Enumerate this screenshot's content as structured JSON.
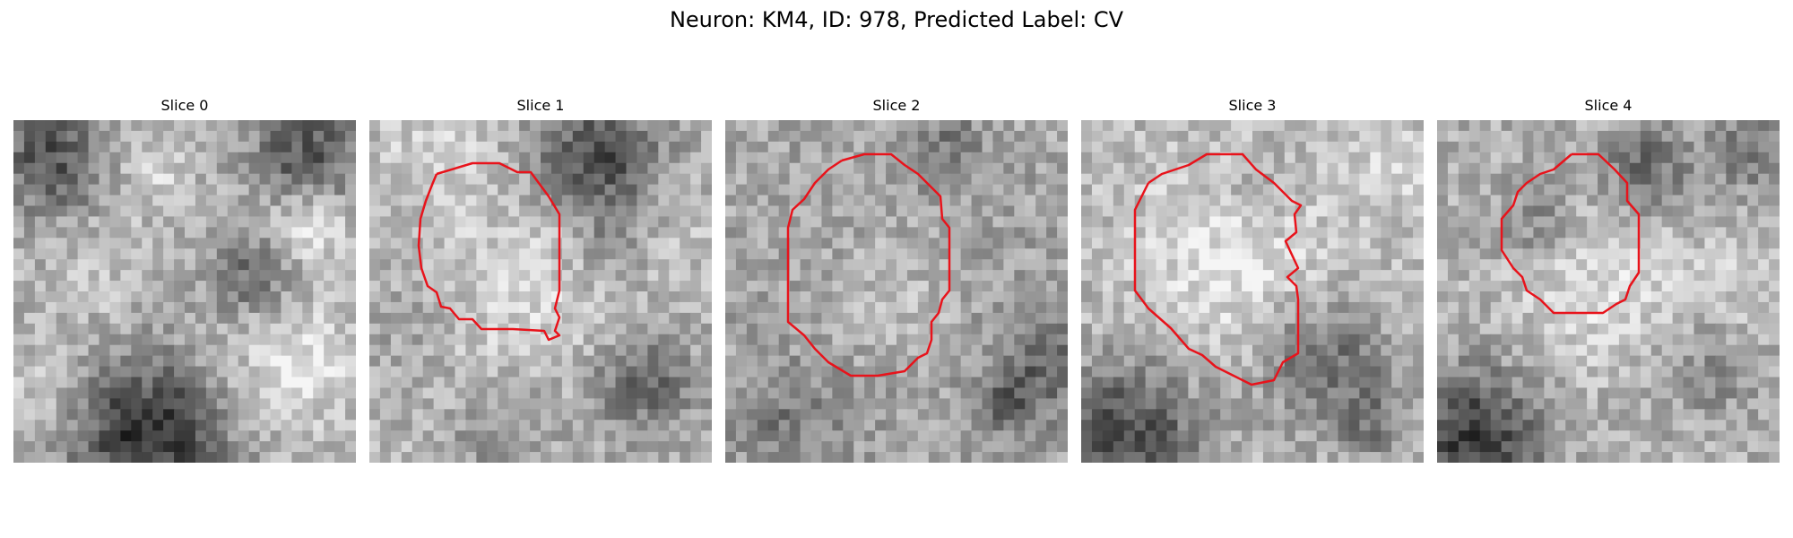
{
  "figure": {
    "title": "Neuron: KM4, ID: 978, Predicted Label: CV"
  },
  "panels": [
    {
      "title": "Slice 0",
      "has_contour": false
    },
    {
      "title": "Slice 1",
      "has_contour": true
    },
    {
      "title": "Slice 2",
      "has_contour": true
    },
    {
      "title": "Slice 3",
      "has_contour": true
    },
    {
      "title": "Slice 4",
      "has_contour": true
    }
  ],
  "colors": {
    "contour": "#e8131b",
    "background": "#ffffff"
  }
}
